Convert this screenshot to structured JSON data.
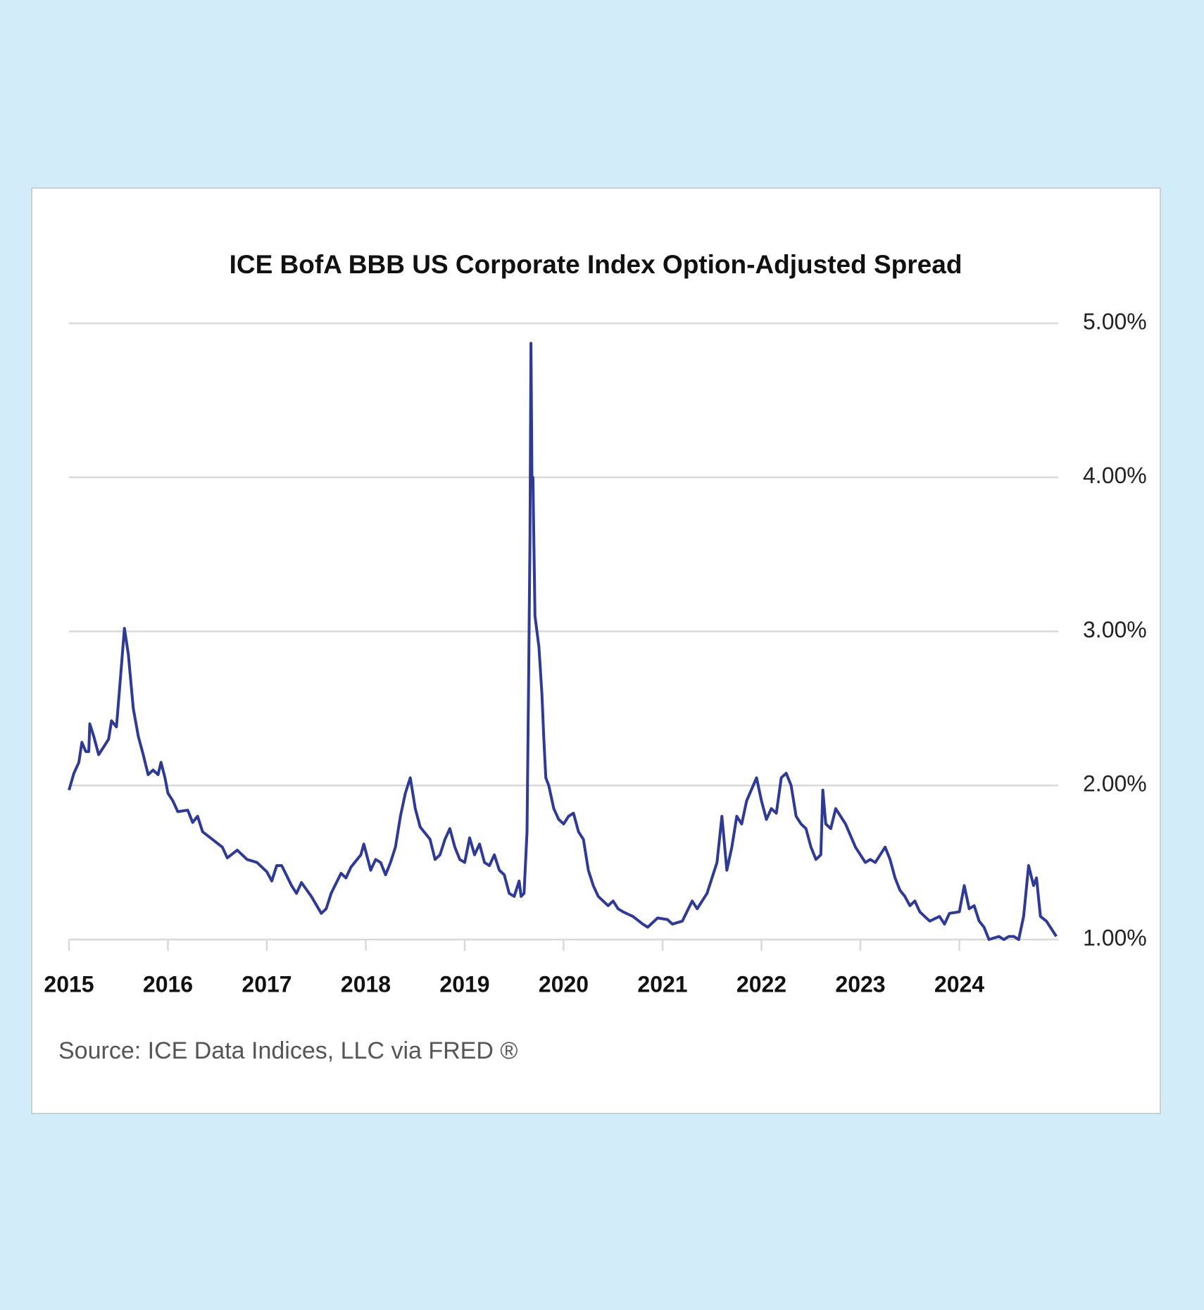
{
  "chart_data": {
    "type": "line",
    "title": "ICE BofA BBB US Corporate Index Option-Adjusted Spread",
    "source": "Source: ICE Data Indices, LLC via FRED ®",
    "xlim": [
      2015,
      2025
    ],
    "xticks": [
      2015,
      2016,
      2017,
      2018,
      2019,
      2020,
      2021,
      2022,
      2023,
      2024
    ],
    "ylim": [
      1,
      5
    ],
    "yticks": [
      {
        "value": 1,
        "label": "1.00%"
      },
      {
        "value": 2,
        "label": "2.00%"
      },
      {
        "value": 3,
        "label": "3.00%"
      },
      {
        "value": 4,
        "label": "4.00%"
      },
      {
        "value": 5,
        "label": "5.00%"
      }
    ],
    "grid": true,
    "series": [
      {
        "color": "#2e3a94",
        "x": [
          2015.0,
          2015.05,
          2015.1,
          2015.13,
          2015.17,
          2015.2,
          2015.21,
          2015.25,
          2015.3,
          2015.35,
          2015.4,
          2015.43,
          2015.48,
          2015.52,
          2015.56,
          2015.6,
          2015.65,
          2015.7,
          2015.75,
          2015.8,
          2015.85,
          2015.9,
          2015.93,
          2015.97,
          2016.0,
          2016.05,
          2016.1,
          2016.2,
          2016.25,
          2016.3,
          2016.35,
          2016.45,
          2016.55,
          2016.6,
          2016.7,
          2016.8,
          2016.9,
          2017.0,
          2017.05,
          2017.1,
          2017.15,
          2017.25,
          2017.3,
          2017.35,
          2017.45,
          2017.55,
          2017.6,
          2017.65,
          2017.75,
          2017.8,
          2017.85,
          2017.95,
          2017.98,
          2018.05,
          2018.1,
          2018.15,
          2018.2,
          2018.25,
          2018.3,
          2018.35,
          2018.4,
          2018.45,
          2018.5,
          2018.55,
          2018.65,
          2018.7,
          2018.75,
          2018.8,
          2018.85,
          2018.9,
          2018.95,
          2019.0,
          2019.05,
          2019.1,
          2019.15,
          2019.2,
          2019.25,
          2019.3,
          2019.35,
          2019.4,
          2019.45,
          2019.5,
          2019.55,
          2019.57,
          2019.6,
          2019.63,
          2019.645,
          2019.66,
          2019.67,
          2019.68,
          2019.69,
          2019.71,
          2019.75,
          2019.78,
          2019.8,
          2019.82,
          2019.85,
          2019.9,
          2019.95,
          2020.0,
          2020.05,
          2020.1,
          2020.15,
          2020.2,
          2020.25,
          2020.3,
          2020.35,
          2020.45,
          2020.5,
          2020.55,
          2020.6,
          2020.7,
          2020.8,
          2020.85,
          2020.95,
          2021.05,
          2021.1,
          2021.2,
          2021.3,
          2021.35,
          2021.45,
          2021.55,
          2021.6,
          2021.65,
          2021.7,
          2021.75,
          2021.8,
          2021.85,
          2021.95,
          2022.0,
          2022.05,
          2022.1,
          2022.15,
          2022.2,
          2022.25,
          2022.3,
          2022.35,
          2022.4,
          2022.45,
          2022.5,
          2022.55,
          2022.6,
          2022.62,
          2022.65,
          2022.7,
          2022.75,
          2022.8,
          2022.85,
          2022.95,
          2023.0,
          2023.05,
          2023.1,
          2023.15,
          2023.25,
          2023.3,
          2023.35,
          2023.4,
          2023.45,
          2023.5,
          2023.55,
          2023.6,
          2023.65,
          2023.7,
          2023.8,
          2023.85,
          2023.9,
          2024.0,
          2024.05,
          2024.1,
          2024.15,
          2024.2,
          2024.25,
          2024.3,
          2024.4,
          2024.45,
          2024.5,
          2024.55,
          2024.6,
          2024.65,
          2024.7,
          2024.75,
          2024.78,
          2024.82,
          2024.88,
          2024.92,
          2024.98
        ],
        "values": [
          1.97,
          2.08,
          2.15,
          2.28,
          2.22,
          2.22,
          2.4,
          2.32,
          2.2,
          2.25,
          2.3,
          2.42,
          2.38,
          2.7,
          3.02,
          2.85,
          2.5,
          2.32,
          2.2,
          2.07,
          2.1,
          2.07,
          2.15,
          2.05,
          1.95,
          1.9,
          1.83,
          1.84,
          1.76,
          1.8,
          1.7,
          1.65,
          1.6,
          1.53,
          1.58,
          1.52,
          1.5,
          1.44,
          1.38,
          1.48,
          1.48,
          1.35,
          1.3,
          1.37,
          1.28,
          1.17,
          1.2,
          1.3,
          1.43,
          1.4,
          1.47,
          1.55,
          1.62,
          1.45,
          1.52,
          1.5,
          1.42,
          1.5,
          1.6,
          1.8,
          1.95,
          2.05,
          1.85,
          1.73,
          1.65,
          1.52,
          1.55,
          1.65,
          1.72,
          1.6,
          1.52,
          1.5,
          1.66,
          1.55,
          1.62,
          1.5,
          1.48,
          1.55,
          1.45,
          1.42,
          1.3,
          1.28,
          1.38,
          1.28,
          1.3,
          1.7,
          2.6,
          3.6,
          4.87,
          4.0,
          4.0,
          3.1,
          2.9,
          2.6,
          2.3,
          2.05,
          2.0,
          1.85,
          1.78,
          1.75,
          1.8,
          1.82,
          1.7,
          1.65,
          1.45,
          1.35,
          1.28,
          1.22,
          1.25,
          1.2,
          1.18,
          1.15,
          1.1,
          1.08,
          1.14,
          1.13,
          1.1,
          1.12,
          1.25,
          1.2,
          1.3,
          1.5,
          1.8,
          1.45,
          1.6,
          1.8,
          1.75,
          1.9,
          2.05,
          1.9,
          1.78,
          1.85,
          1.82,
          2.05,
          2.08,
          2.0,
          1.8,
          1.75,
          1.72,
          1.6,
          1.52,
          1.55,
          1.97,
          1.75,
          1.72,
          1.85,
          1.8,
          1.75,
          1.6,
          1.55,
          1.5,
          1.52,
          1.5,
          1.6,
          1.52,
          1.4,
          1.32,
          1.28,
          1.22,
          1.25,
          1.18,
          1.15,
          1.12,
          1.15,
          1.1,
          1.17,
          1.18,
          1.35,
          1.2,
          1.22,
          1.12,
          1.08,
          1.0,
          1.02,
          1.0,
          1.02,
          1.02,
          1.0,
          1.15,
          1.48,
          1.35,
          1.4,
          1.15,
          1.12,
          1.08,
          1.02
        ]
      }
    ]
  }
}
